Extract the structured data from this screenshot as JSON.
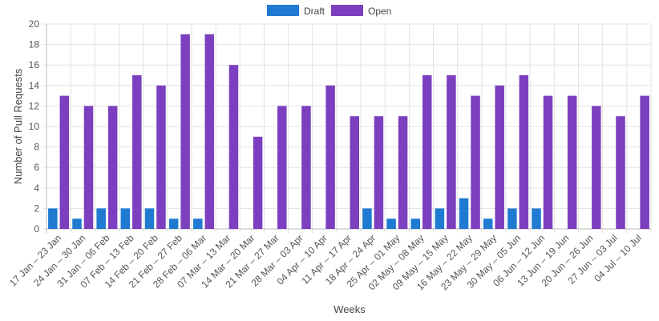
{
  "chart_data": {
    "type": "bar",
    "xlabel": "Weeks",
    "ylabel": "Number of Pull Requests",
    "ylim": [
      0,
      20
    ],
    "ytick_step": 2,
    "grid": true,
    "legend_position": "top-center",
    "categories": [
      "17 Jan – 23 Jan",
      "24 Jan – 30 Jan",
      "31 Jan – 06 Feb",
      "07 Feb – 13 Feb",
      "14 Feb – 20 Feb",
      "21 Feb – 27 Feb",
      "28 Feb – 06 Mar",
      "07 Mar – 13 Mar",
      "14 Mar – 20 Mar",
      "21 Mar – 27 Mar",
      "28 Mar – 03 Apr",
      "04 Apr – 10 Apr",
      "11 Apr – 17 Apr",
      "18 Apr – 24 Apr",
      "25 Apr – 01 May",
      "02 May – 08 May",
      "09 May – 15 May",
      "16 May – 22 May",
      "23 May – 29 May",
      "30 May – 05 Jun",
      "06 Jun – 12 Jun",
      "13 Jun – 19 Jun",
      "20 Jun – 26 Jun",
      "27 Jun – 03 Jul",
      "04 Jul – 10 Jul"
    ],
    "series": [
      {
        "name": "Draft",
        "color": "#1f7ad1",
        "values": [
          2,
          1,
          2,
          2,
          2,
          1,
          1,
          0,
          0,
          0,
          0,
          0,
          0,
          2,
          1,
          1,
          2,
          3,
          1,
          2,
          2,
          0,
          0,
          0,
          0
        ]
      },
      {
        "name": "Open",
        "color": "#7b3fbf",
        "values": [
          13,
          12,
          12,
          15,
          14,
          19,
          19,
          16,
          9,
          12,
          12,
          14,
          11,
          11,
          11,
          15,
          15,
          13,
          14,
          15,
          13,
          13,
          12,
          11,
          13
        ]
      }
    ]
  }
}
